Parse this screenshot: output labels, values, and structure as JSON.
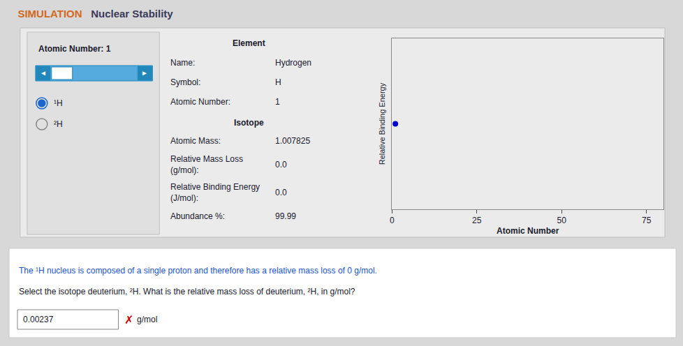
{
  "chart_data": {
    "type": "scatter",
    "subtitle": "SIMULATION",
    "title": "Nuclear Stability",
    "x": [
      1
    ],
    "values": [
      0.0
    ],
    "color": "#0000cc",
    "marker": "circle",
    "xlabel": "Atomic Number",
    "ylabel": "Relative Binding Energy",
    "xlim": [
      0,
      80
    ],
    "xticks": [
      0,
      25,
      50,
      75
    ],
    "ylim": [
      -1,
      1
    ],
    "grid": false,
    "tick_labels": "x",
    "annotations": [
      "Atomic Number: 1",
      "◄",
      "►",
      "¹H",
      "²H",
      "Element",
      "Name:",
      "Hydrogen",
      "Symbol:",
      "H",
      "Atomic Number:",
      "1",
      "Isotope",
      "Atomic Mass:",
      "1.007825",
      "Relative Mass Loss\n(g/mol):",
      "0.0",
      "Relative Binding Energy\n(J/mol):",
      "0.0",
      "Abundance %:",
      "99.99",
      "The ¹H nucleus is composed of a single proton and therefore has a relative mass loss of 0 g/mol.",
      "Select the isotope deuterium, ²H. What is the relative mass loss of deuterium, ²H, in g/mol?",
      "0.00237",
      {
        "text": "✗",
        "color": "#cc0000"
      },
      "g/mol"
    ]
  }
}
